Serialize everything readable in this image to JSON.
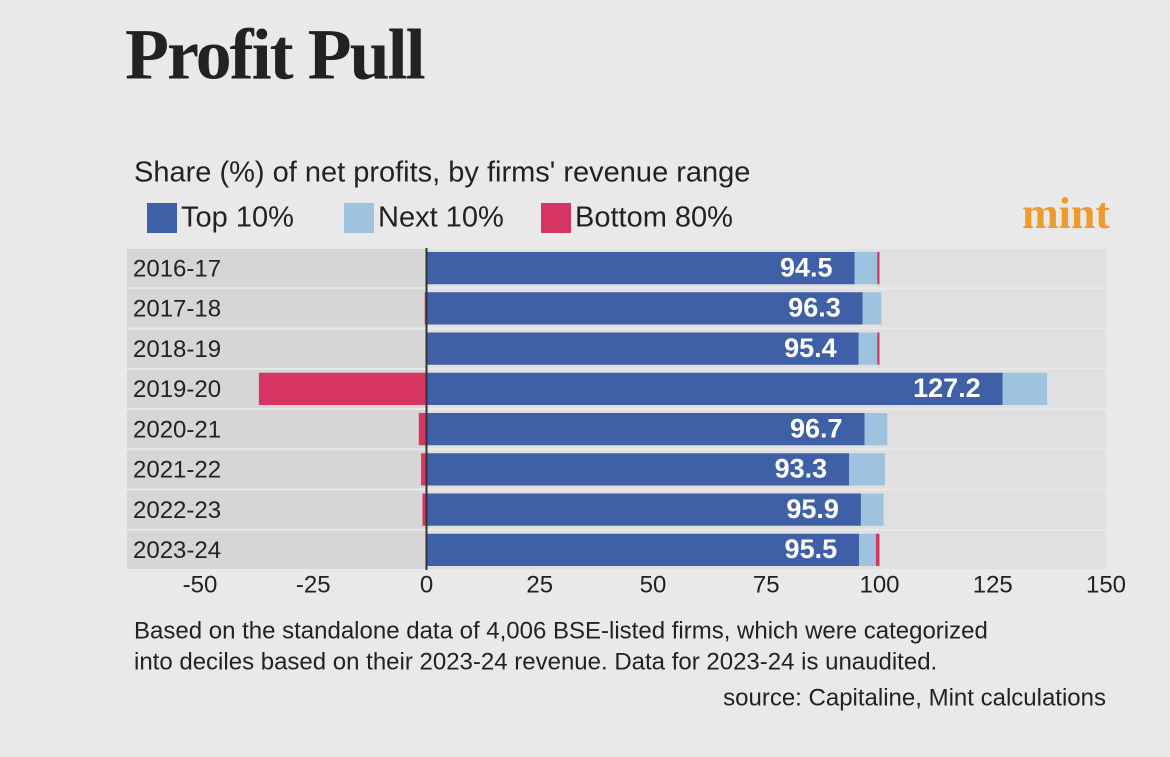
{
  "chart_data": {
    "type": "stacked_bar_horizontal",
    "title": "Profit Pull",
    "subtitle": "Share (%) of net profits, by firms' revenue range",
    "brand": "mint",
    "categories": [
      "2016-17",
      "2017-18",
      "2018-19",
      "2019-20",
      "2020-21",
      "2021-22",
      "2022-23",
      "2023-24"
    ],
    "series": [
      {
        "name": "Top 10%",
        "color": "#3f5fa6",
        "data_labels": true,
        "values": [
          94.5,
          96.3,
          95.4,
          127.2,
          96.7,
          93.3,
          95.9,
          95.5
        ]
      },
      {
        "name": "Next 10%",
        "color": "#9dc3de",
        "values": [
          5.0,
          4.1,
          4.1,
          9.8,
          5.0,
          7.9,
          5.0,
          3.7
        ]
      },
      {
        "name": "Bottom 80%",
        "color": "#d63564",
        "values": [
          0.5,
          -0.4,
          0.5,
          -37.0,
          -1.7,
          -1.2,
          -0.9,
          0.8
        ]
      }
    ],
    "xlim": [
      -50,
      150
    ],
    "xticks": [
      -50,
      -25,
      0,
      25,
      50,
      75,
      100,
      125,
      150
    ],
    "notes": [
      "Based on the standalone data of 4,006 BSE-listed firms, which were categorized",
      "into deciles based on their 2023-24 revenue. Data for 2023-24 is unaudited."
    ],
    "source": "source: Capitaline, Mint calculations"
  }
}
